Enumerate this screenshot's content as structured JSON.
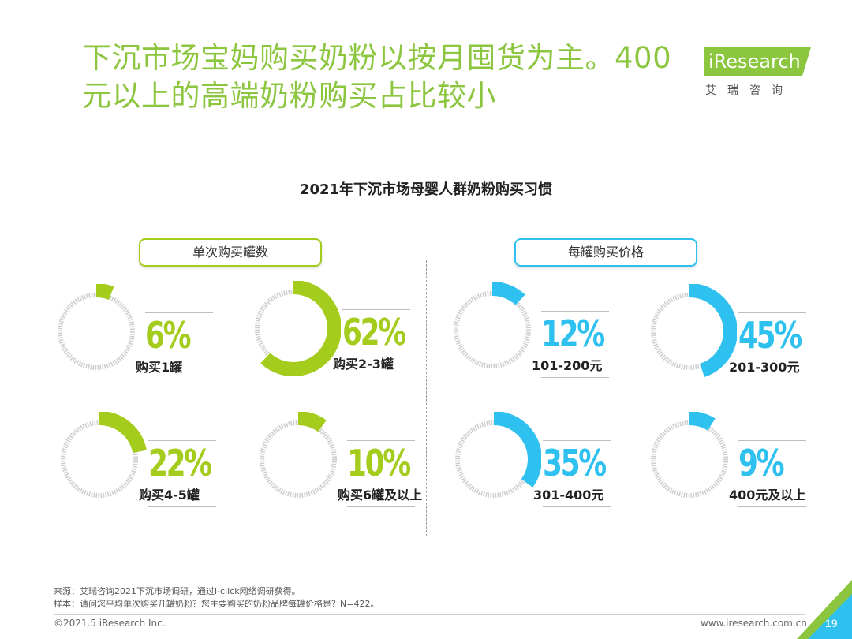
{
  "title_lines": [
    "下沉市场宝妈购买奶粉以按月囤货为主。400",
    "元以上的高端奶粉购买占比较小"
  ],
  "logo": {
    "text": "iResearch",
    "sub": "艾瑞咨询"
  },
  "colors": {
    "green": "#a4cc1c",
    "blue": "#2ec1ef",
    "title_green": "#8cc63f",
    "ring_gray": "#cfcfcf"
  },
  "chart_data": [
    {
      "type": "pie",
      "title": "2021年下沉市场母婴人群奶粉购买习惯",
      "group": "单次购买罐数",
      "color": "#a4cc1c",
      "categories": [
        "购买1罐",
        "购买2-3罐",
        "购买4-5罐",
        "购买6罐及以上"
      ],
      "values": [
        6,
        62,
        22,
        10
      ],
      "value_labels": [
        "6%",
        "62%",
        "22%",
        "10%"
      ]
    },
    {
      "type": "pie",
      "group": "每罐购买价格",
      "color": "#2ec1ef",
      "categories": [
        "101-200元",
        "201-300元",
        "301-400元",
        "400元及以上"
      ],
      "values": [
        12,
        45,
        35,
        9
      ],
      "value_labels": [
        "12%",
        "45%",
        "35%",
        "9%"
      ]
    }
  ],
  "footer": {
    "source": "来源：艾瑞咨询2021下沉市场调研，通过i-click网络调研获得。",
    "sample": "样本：请问您平均单次购买几罐奶粉？您主要购买的奶粉品牌每罐价格是？N=422。",
    "copyright": "©2021.5 iResearch Inc.",
    "site": "www.iresearch.com.cn",
    "page": "19"
  }
}
